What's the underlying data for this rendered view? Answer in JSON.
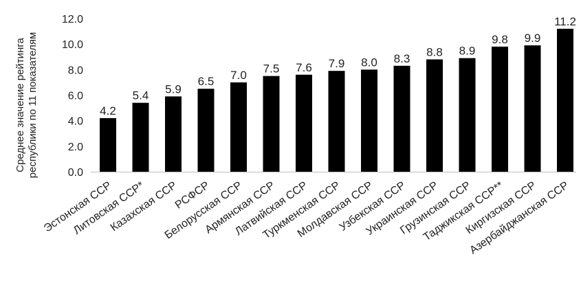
{
  "chart_data": {
    "type": "bar",
    "ylabel_line1": "Среднее значение рейтинга",
    "ylabel_line2": "республики по 11 показателям",
    "ylim": [
      0,
      12
    ],
    "y_ticks": [
      "0.0",
      "2.0",
      "4.0",
      "6.0",
      "8.0",
      "10.0",
      "12.0"
    ],
    "categories": [
      "Эстонская ССР",
      "Литовская ССР*",
      "Казахская ССР",
      "РСФСР",
      "Белорусская ССР",
      "Армянская ССР",
      "Латвийская ССР",
      "Туркменская ССР",
      "Молдавская ССР",
      "Узбекская ССР",
      "Украинская ССР",
      "Грузинская ССР",
      "Таджикская ССР**",
      "Киргизская ССР",
      "Азербайджанская ССР"
    ],
    "values": [
      4.2,
      5.4,
      5.9,
      6.5,
      7.0,
      7.5,
      7.6,
      7.9,
      8.0,
      8.3,
      8.8,
      8.9,
      9.8,
      9.9,
      11.2
    ],
    "value_labels": [
      "4.2",
      "5.4",
      "5.9",
      "6.5",
      "7.0",
      "7.5",
      "7.6",
      "7.9",
      "8.0",
      "8.3",
      "8.8",
      "8.9",
      "9.8",
      "9.9",
      "11.2"
    ],
    "bar_color": "#000000",
    "grid": false,
    "legend": "none"
  }
}
